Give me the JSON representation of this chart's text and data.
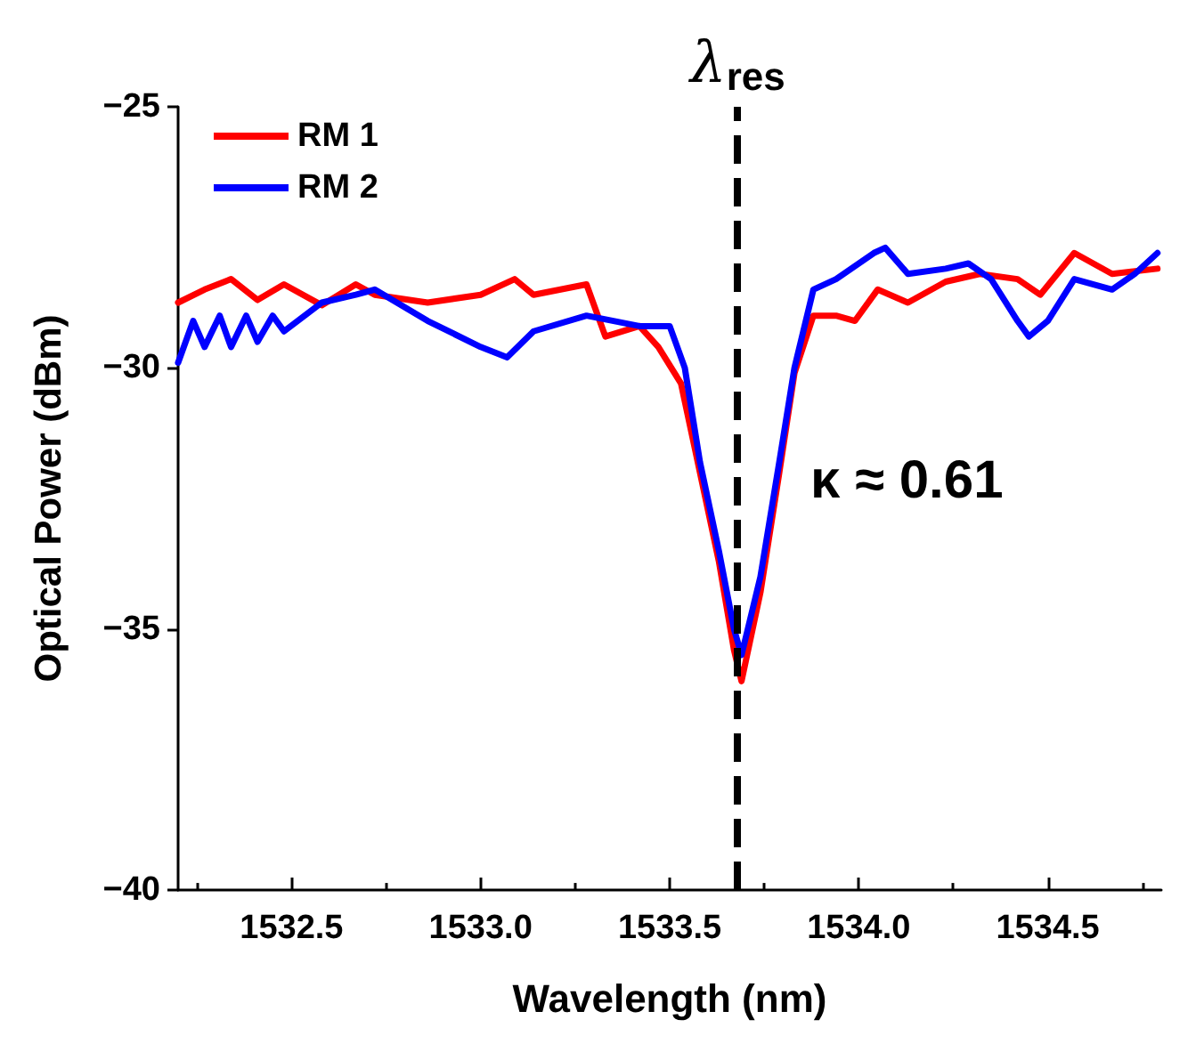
{
  "chart_data": {
    "type": "line",
    "xlabel": "Wavelength (nm)",
    "ylabel": "Optical Power (dBm)",
    "xlim": [
      1532.2,
      1534.8
    ],
    "xticks": [
      1532.5,
      {
        "value": 1533,
        "label": "1533.0"
      },
      1533.5,
      {
        "value": 1534,
        "label": "1534.0"
      },
      1534.5
    ],
    "ylim": [
      -40,
      -25
    ],
    "yticks": [
      -25,
      -30,
      -35,
      -40
    ],
    "grid": false,
    "legend": "top left",
    "line_style": "solid",
    "marker": "none",
    "series": [
      {
        "name": "RM 1",
        "color": "#ff0000",
        "x": [
          1532.2,
          1532.27,
          1532.34,
          1532.41,
          1532.48,
          1532.58,
          1532.67,
          1532.72,
          1532.86,
          1533.0,
          1533.09,
          1533.14,
          1533.28,
          1533.33,
          1533.42,
          1533.47,
          1533.53,
          1533.58,
          1533.63,
          1533.67,
          1533.69,
          1533.74,
          1533.79,
          1533.83,
          1533.88,
          1533.94,
          1533.99,
          1534.05,
          1534.13,
          1534.23,
          1534.32,
          1534.42,
          1534.48,
          1534.57,
          1534.67,
          1534.79
        ],
        "values": [
          -28.75,
          -28.5,
          -28.3,
          -28.7,
          -28.4,
          -28.8,
          -28.4,
          -28.6,
          -28.75,
          -28.6,
          -28.3,
          -28.6,
          -28.4,
          -29.4,
          -29.2,
          -29.6,
          -30.3,
          -32.0,
          -33.7,
          -35.4,
          -36.0,
          -34.3,
          -32.0,
          -30.1,
          -29.0,
          -29.0,
          -29.1,
          -28.5,
          -28.75,
          -28.35,
          -28.2,
          -28.3,
          -28.6,
          -27.8,
          -28.2,
          -28.1
        ]
      },
      {
        "name": "RM 2",
        "color": "#0000ff",
        "x": [
          1532.2,
          1532.24,
          1532.27,
          1532.31,
          1532.34,
          1532.38,
          1532.41,
          1532.45,
          1532.48,
          1532.58,
          1532.67,
          1532.72,
          1532.86,
          1533.0,
          1533.07,
          1533.14,
          1533.28,
          1533.42,
          1533.5,
          1533.54,
          1533.58,
          1533.63,
          1533.67,
          1533.69,
          1533.74,
          1533.79,
          1533.83,
          1533.88,
          1533.94,
          1534.04,
          1534.07,
          1534.13,
          1534.23,
          1534.29,
          1534.35,
          1534.42,
          1534.45,
          1534.5,
          1534.57,
          1534.67,
          1534.73,
          1534.79
        ],
        "values": [
          -29.9,
          -29.1,
          -29.6,
          -29.0,
          -29.6,
          -29.0,
          -29.5,
          -29.0,
          -29.3,
          -28.75,
          -28.6,
          -28.5,
          -29.1,
          -29.6,
          -29.8,
          -29.3,
          -29.0,
          -29.2,
          -29.2,
          -30.0,
          -31.8,
          -33.5,
          -35.0,
          -35.5,
          -34.0,
          -31.8,
          -30.0,
          -28.5,
          -28.3,
          -27.8,
          -27.7,
          -28.2,
          -28.1,
          -28.0,
          -28.3,
          -29.1,
          -29.4,
          -29.1,
          -28.3,
          -28.5,
          -28.2,
          -27.8
        ]
      }
    ],
    "ref_lines": [
      {
        "axis": "x",
        "value": 1533.68,
        "label": "λ$_{res}$",
        "color": "#000000",
        "line_style": "dashed"
      }
    ],
    "annotations": [
      "κ ≈ 0.61"
    ]
  }
}
